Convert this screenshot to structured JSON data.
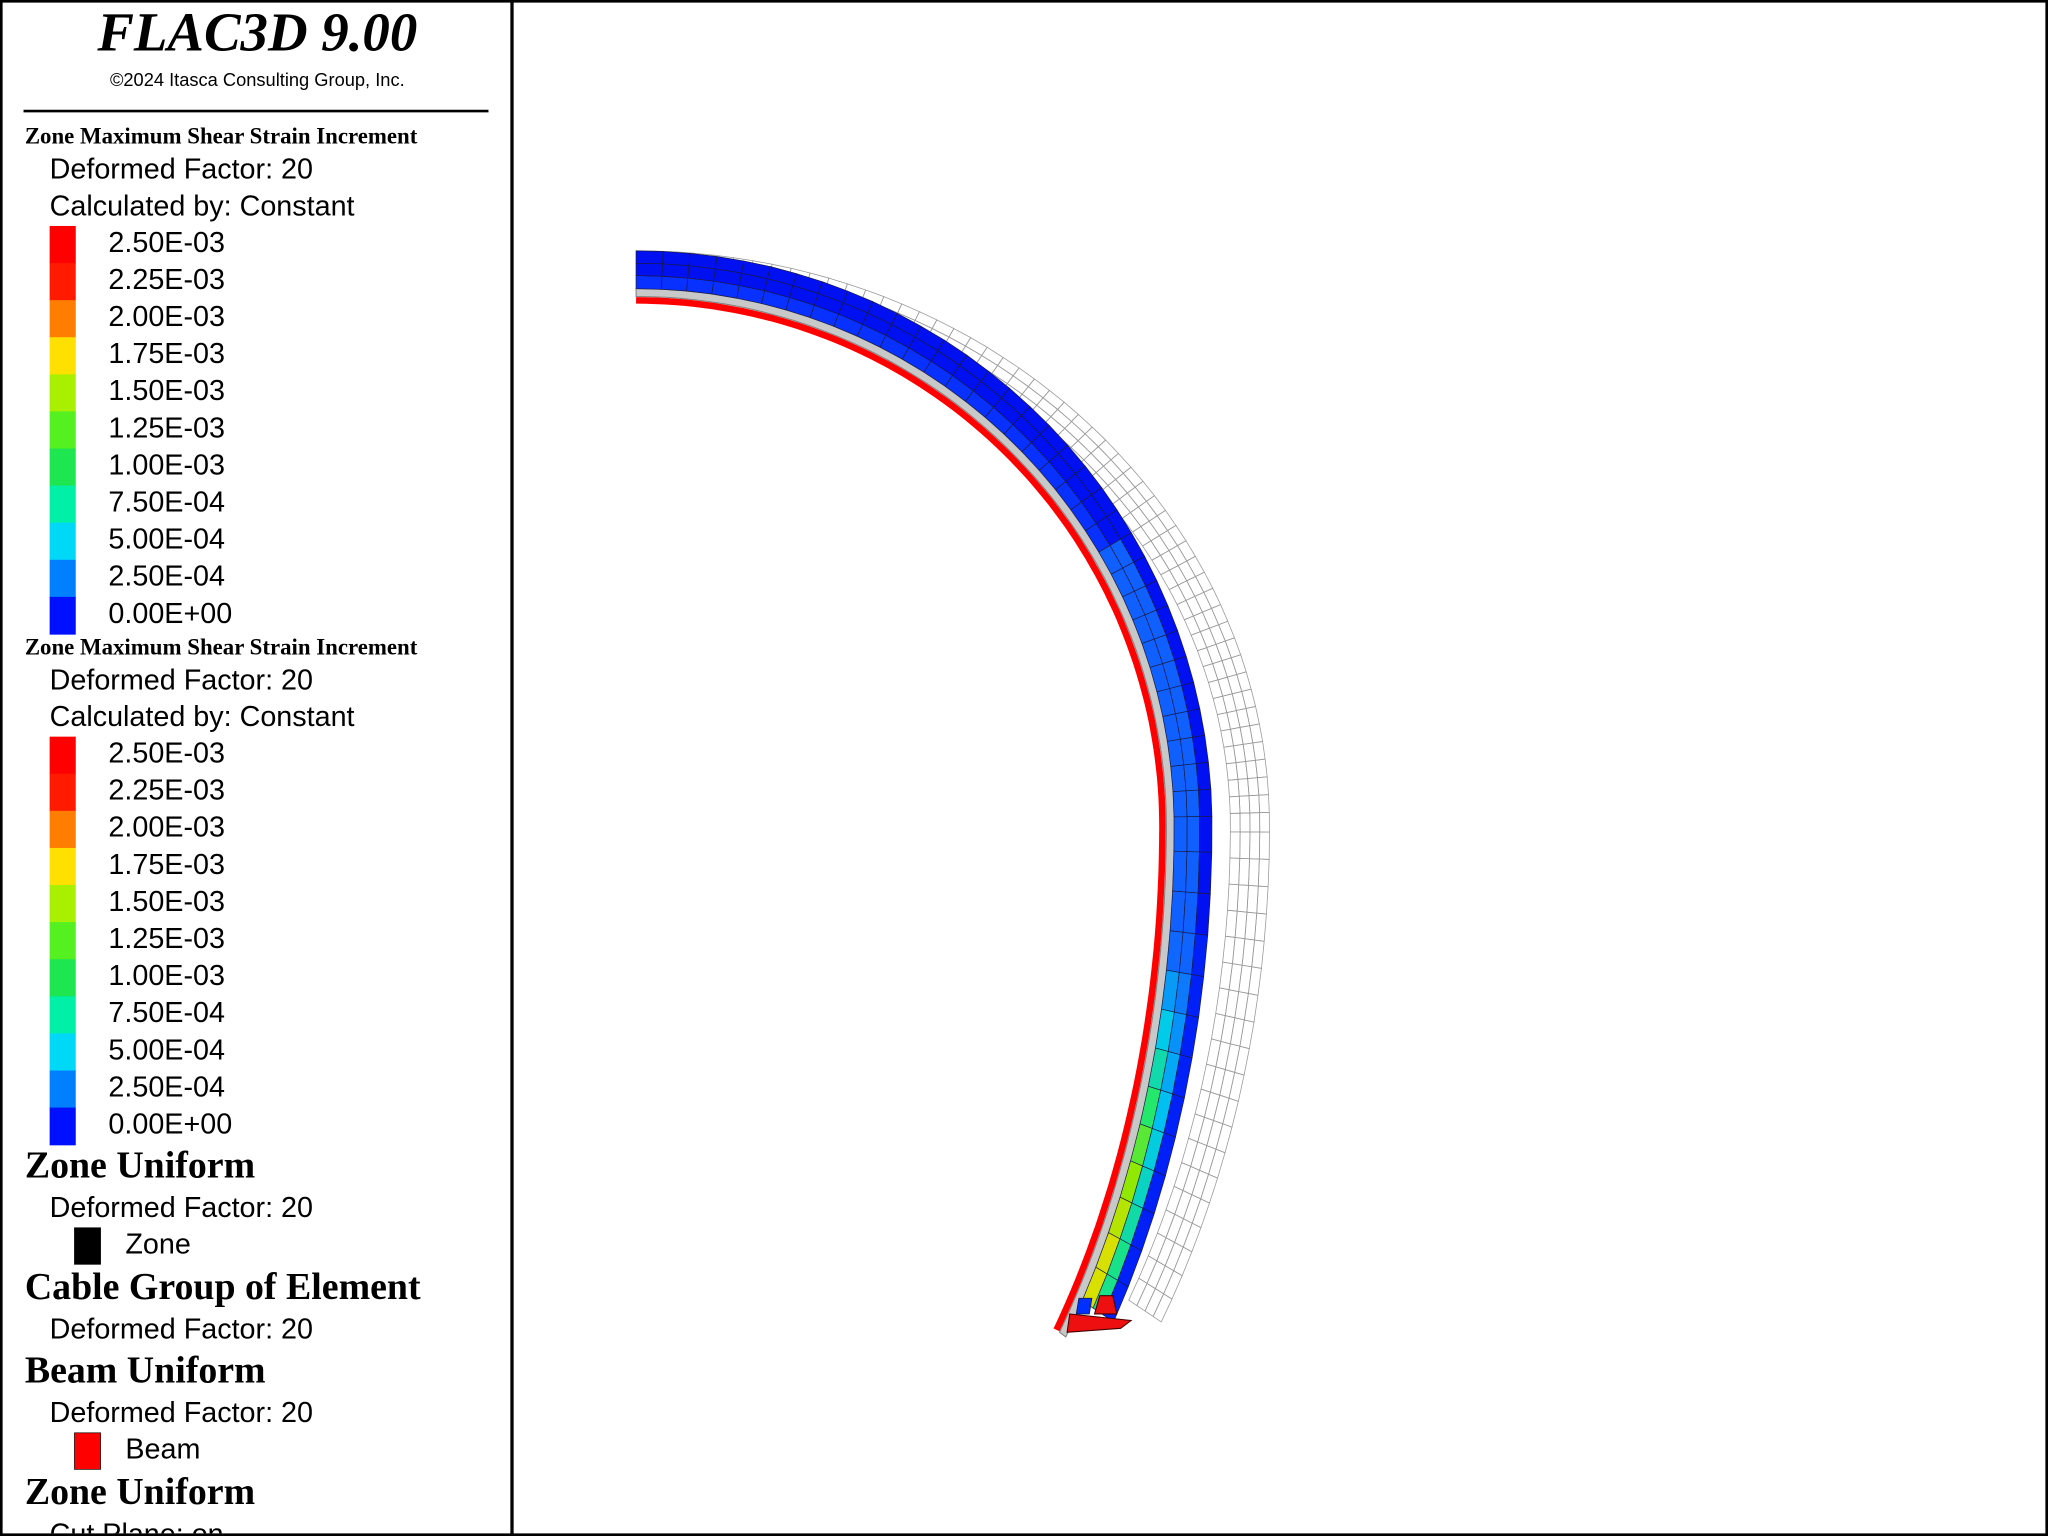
{
  "header": {
    "title": "FLAC3D 9.00",
    "copyright": "©2024 Itasca Consulting Group, Inc."
  },
  "legend": [
    {
      "title": "Zone Maximum Shear Strain Increment",
      "lines": [
        "Deformed Factor: 20",
        "Calculated by: Constant"
      ],
      "scale": [
        {
          "label": "2.50E-03",
          "color": "#ff0000"
        },
        {
          "label": "2.25E-03",
          "color": "#ff1a00"
        },
        {
          "label": "2.00E-03",
          "color": "#ff7d00"
        },
        {
          "label": "1.75E-03",
          "color": "#ffe000"
        },
        {
          "label": "1.50E-03",
          "color": "#a8f000"
        },
        {
          "label": "1.25E-03",
          "color": "#55f020"
        },
        {
          "label": "1.00E-03",
          "color": "#1ee650"
        },
        {
          "label": "7.50E-04",
          "color": "#00f0a8"
        },
        {
          "label": "5.00E-04",
          "color": "#00d8f8"
        },
        {
          "label": "2.50E-04",
          "color": "#0080ff"
        },
        {
          "label": "0.00E+00",
          "color": "#0010ff"
        }
      ]
    },
    {
      "title": "Zone Maximum Shear Strain Increment",
      "lines": [
        "Deformed Factor: 20",
        "Calculated by: Constant"
      ],
      "scale": [
        {
          "label": "2.50E-03",
          "color": "#ff0000"
        },
        {
          "label": "2.25E-03",
          "color": "#ff1a00"
        },
        {
          "label": "2.00E-03",
          "color": "#ff7d00"
        },
        {
          "label": "1.75E-03",
          "color": "#ffe000"
        },
        {
          "label": "1.50E-03",
          "color": "#a8f000"
        },
        {
          "label": "1.25E-03",
          "color": "#55f020"
        },
        {
          "label": "1.00E-03",
          "color": "#1ee650"
        },
        {
          "label": "7.50E-04",
          "color": "#00f0a8"
        },
        {
          "label": "5.00E-04",
          "color": "#00d8f8"
        },
        {
          "label": "2.50E-04",
          "color": "#0080ff"
        },
        {
          "label": "0.00E+00",
          "color": "#0010ff"
        }
      ]
    },
    {
      "title": "Zone Uniform",
      "lines": [
        "Deformed Factor: 20"
      ],
      "items": [
        {
          "label": "Zone",
          "color": "#000000"
        }
      ]
    },
    {
      "title": "Cable Group of Element",
      "lines": [
        "Deformed Factor: 20"
      ]
    },
    {
      "title": "Beam Uniform",
      "lines": [
        "Deformed Factor: 20"
      ],
      "items": [
        {
          "label": "Beam",
          "color": "#ff0000"
        }
      ]
    },
    {
      "title": "Zone Uniform",
      "lines": [
        "Cut Plane: on"
      ]
    }
  ]
}
